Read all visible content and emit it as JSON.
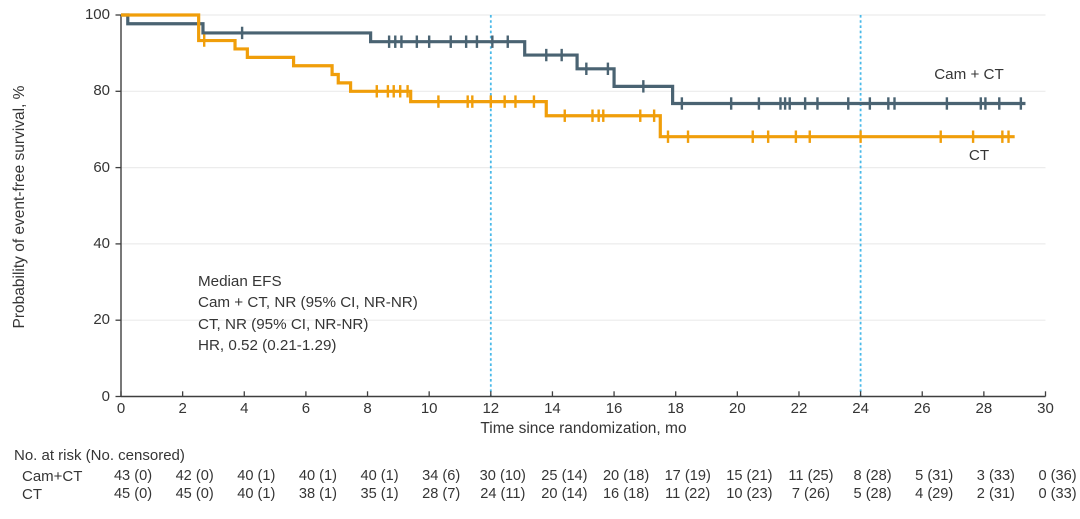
{
  "chart_data": {
    "type": "line",
    "subtype": "kaplan-meier-step-curves",
    "title": "",
    "xlabel": "Time since randomization, mo",
    "ylabel": "Probability of event-free survival, %",
    "xlim": [
      0,
      30
    ],
    "ylim": [
      0,
      100
    ],
    "xticks": [
      0,
      2,
      4,
      6,
      8,
      10,
      12,
      14,
      16,
      18,
      20,
      22,
      24,
      26,
      28,
      30
    ],
    "yticks": [
      0,
      20,
      40,
      60,
      80,
      100
    ],
    "grid": "horizontal-only",
    "reference_lines_x": [
      12,
      24
    ],
    "colors": {
      "cam_ct": "#4a6372",
      "ct": "#f09e0a",
      "reference": "#4ab9e8",
      "grid": "#ececec",
      "axis": "#3f3f3f",
      "text": "#353535"
    },
    "series": [
      {
        "name": "Cam + CT",
        "color": "#4a6372",
        "steps": [
          [
            0,
            100
          ],
          [
            0.22,
            97.7
          ],
          [
            2.66,
            95.3
          ],
          [
            8.1,
            93.0
          ],
          [
            13.1,
            89.5
          ],
          [
            14.8,
            85.9
          ],
          [
            16.0,
            81.3
          ],
          [
            17.9,
            76.8
          ]
        ],
        "end_time": 29.35,
        "censor_times": [
          3.93,
          8.7,
          8.9,
          9.1,
          9.6,
          10.0,
          10.7,
          11.2,
          11.55,
          12.05,
          12.55,
          13.8,
          14.3,
          15.1,
          15.8,
          16.95,
          18.2,
          19.8,
          20.7,
          21.4,
          21.55,
          21.7,
          22.2,
          22.6,
          23.6,
          24.3,
          24.9,
          25.1,
          26.8,
          27.9,
          28.05,
          28.5,
          29.2
        ]
      },
      {
        "name": "CT",
        "color": "#f09e0a",
        "steps": [
          [
            0,
            100
          ],
          [
            2.52,
            93.3
          ],
          [
            3.7,
            91.1
          ],
          [
            4.1,
            88.9
          ],
          [
            5.6,
            86.7
          ],
          [
            6.85,
            84.4
          ],
          [
            7.05,
            82.2
          ],
          [
            7.45,
            80.0
          ],
          [
            9.4,
            77.3
          ],
          [
            13.8,
            73.6
          ],
          [
            17.5,
            68.1
          ]
        ],
        "end_time": 29.0,
        "censor_times": [
          2.7,
          8.3,
          8.66,
          8.85,
          9.06,
          9.3,
          10.3,
          11.25,
          11.4,
          12.0,
          12.45,
          12.8,
          13.4,
          14.4,
          15.3,
          15.5,
          15.65,
          16.85,
          17.3,
          17.75,
          18.4,
          20.5,
          21.0,
          21.9,
          22.35,
          24.0,
          26.6,
          27.65,
          28.6,
          28.8
        ]
      }
    ],
    "legend": {
      "cam_ct_label": "Cam + CT",
      "ct_label": "CT"
    },
    "annotation": {
      "line1": "Median EFS",
      "line2": "Cam + CT, NR (95% CI, NR-NR)",
      "line3": "CT, NR (95% CI, NR-NR)",
      "line4": "HR, 0.52 (0.21-1.29)"
    },
    "risk_table": {
      "header": "No. at risk (No. censored)",
      "times": [
        0,
        2,
        4,
        6,
        8,
        10,
        12,
        14,
        16,
        18,
        20,
        22,
        24,
        26,
        28,
        30
      ],
      "rows": [
        {
          "name": "Cam+CT",
          "values": [
            "43 (0)",
            "42 (0)",
            "40 (1)",
            "40 (1)",
            "40 (1)",
            "34 (6)",
            "30 (10)",
            "25 (14)",
            "20 (18)",
            "17 (19)",
            "15 (21)",
            "11 (25)",
            "8 (28)",
            "5 (31)",
            "3 (33)",
            "0 (36)"
          ]
        },
        {
          "name": "CT",
          "values": [
            "45 (0)",
            "45 (0)",
            "40 (1)",
            "38 (1)",
            "35 (1)",
            "28 (7)",
            "24 (11)",
            "20 (14)",
            "16 (18)",
            "11 (22)",
            "10 (23)",
            "7 (26)",
            "5 (28)",
            "4 (29)",
            "2 (31)",
            "0 (33)"
          ]
        }
      ]
    }
  }
}
